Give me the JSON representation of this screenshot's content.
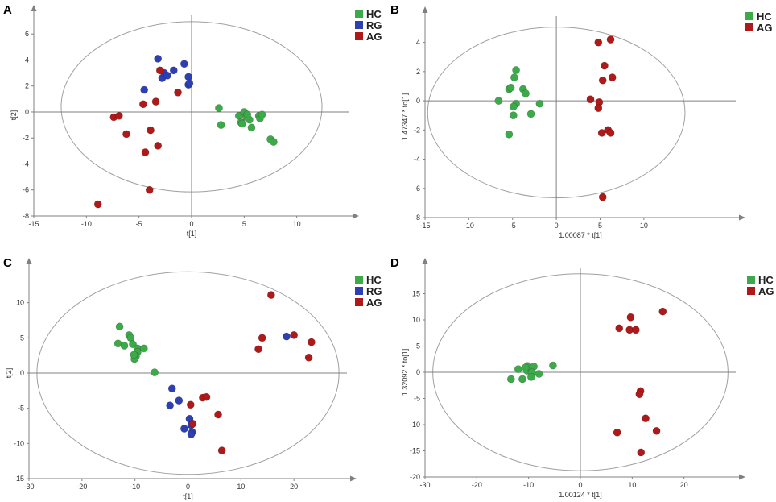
{
  "colors": {
    "HC": "#3daa4a",
    "RG": "#2e3fb3",
    "AG": "#b01919"
  },
  "chart_data": [
    {
      "type": "scatter",
      "panel": "A",
      "xlabel": "t[1]",
      "ylabel": "t[2]",
      "xlim": [
        -15,
        15
      ],
      "ylim": [
        -8,
        7.5
      ],
      "xticks": [
        -15,
        -10,
        -5,
        0,
        5,
        10
      ],
      "yticks": [
        -8,
        -6,
        -4,
        -2,
        0,
        2,
        4,
        6
      ],
      "ellipse": {
        "rx": 12.4,
        "ry": 6.55,
        "cy": 0.4
      },
      "legend": [
        "HC",
        "RG",
        "AG"
      ],
      "series": [
        {
          "name": "HC",
          "x": [
            2.6,
            2.8,
            4.5,
            4.7,
            5.0,
            5.2,
            5.5,
            5.7,
            6.4,
            6.5,
            6.7,
            7.5,
            7.8,
            4.8,
            5.3
          ],
          "y": [
            0.3,
            -1.0,
            -0.3,
            -0.8,
            0.0,
            -0.4,
            -0.6,
            -1.2,
            -0.3,
            -0.5,
            -0.2,
            -2.1,
            -2.3,
            -0.9,
            -0.2
          ]
        },
        {
          "name": "RG",
          "x": [
            -4.5,
            -3.2,
            -2.8,
            -2.6,
            -2.3,
            -1.7,
            -0.7,
            -0.3,
            -0.3,
            -0.2
          ],
          "y": [
            1.7,
            4.1,
            2.6,
            3.0,
            2.8,
            3.2,
            3.7,
            2.7,
            2.1,
            2.2
          ]
        },
        {
          "name": "AG",
          "x": [
            -3.0,
            -1.3,
            -3.4,
            -4.6,
            -7.4,
            -6.9,
            -6.2,
            -3.9,
            -3.2,
            -4.4,
            -4.0,
            -8.9
          ],
          "y": [
            3.2,
            1.5,
            0.8,
            0.6,
            -0.4,
            -0.3,
            -1.7,
            -1.4,
            -2.6,
            -3.1,
            -6.0,
            -7.1
          ]
        }
      ]
    },
    {
      "type": "scatter",
      "panel": "B",
      "xlabel": "1.00087 * t[1]",
      "ylabel": "1.47347 * to[1]",
      "xlim": [
        -15,
        20.5
      ],
      "ylim": [
        -8,
        5.8
      ],
      "xticks": [
        -15,
        -10,
        -5,
        0,
        5,
        10
      ],
      "yticks": [
        -8,
        -6,
        -4,
        -2,
        0,
        2,
        4
      ],
      "ellipse": {
        "rx": 14.7,
        "ry": 5.85,
        "cy": -0.8
      },
      "legend": [
        "HC",
        "AG"
      ],
      "series": [
        {
          "name": "HC",
          "x": [
            -4.6,
            -4.8,
            -3.8,
            -3.5,
            -5.4,
            -6.6,
            -4.6,
            -4.9,
            -4.9,
            -1.9,
            -2.9,
            -5.4,
            -5.2
          ],
          "y": [
            2.1,
            1.6,
            0.8,
            0.5,
            0.8,
            0.0,
            -0.2,
            -0.4,
            -1.0,
            -0.2,
            -0.9,
            -2.3,
            0.9
          ]
        },
        {
          "name": "AG",
          "x": [
            4.8,
            6.2,
            5.5,
            6.4,
            5.3,
            3.9,
            4.9,
            4.8,
            5.9,
            6.2,
            5.2,
            5.3
          ],
          "y": [
            4.0,
            4.2,
            2.4,
            1.6,
            1.4,
            0.1,
            -0.1,
            -0.5,
            -2.0,
            -2.2,
            -2.2,
            -6.6
          ]
        }
      ]
    },
    {
      "type": "scatter",
      "panel": "C",
      "xlabel": "t[1]",
      "ylabel": "t[2]",
      "xlim": [
        -30,
        30
      ],
      "ylim": [
        -15,
        15
      ],
      "xticks": [
        -30,
        -20,
        -10,
        0,
        10,
        20
      ],
      "yticks": [
        -15,
        -10,
        -5,
        0,
        5,
        10
      ],
      "ellipse": {
        "rx": 28.5,
        "ry": 14.4,
        "cy": 0
      },
      "legend": [
        "HC",
        "RG",
        "AG"
      ],
      "series": [
        {
          "name": "HC",
          "x": [
            -12.9,
            -11.1,
            -10.8,
            -10.4,
            -13.2,
            -12.0,
            -9.5,
            -8.3,
            -9.5,
            -9.8,
            -10.1,
            -10.2,
            -6.3
          ],
          "y": [
            6.6,
            5.4,
            5.0,
            4.1,
            4.2,
            3.9,
            3.5,
            3.5,
            3.0,
            2.4,
            2.0,
            2.6,
            0.1
          ]
        },
        {
          "name": "RG",
          "x": [
            18.6,
            -3.0,
            -1.7,
            -3.4,
            0.3,
            0.6,
            -0.7,
            0.8,
            0.6
          ],
          "y": [
            5.2,
            -2.2,
            -3.9,
            -4.6,
            -6.5,
            -7.4,
            -7.9,
            -8.4,
            -8.7
          ]
        },
        {
          "name": "AG",
          "x": [
            15.7,
            20.0,
            23.3,
            14.0,
            13.3,
            22.8,
            0.5,
            2.8,
            3.5,
            5.7,
            0.9,
            6.4
          ],
          "y": [
            11.1,
            5.4,
            4.4,
            5.0,
            3.4,
            2.2,
            -4.5,
            -3.5,
            -3.4,
            -5.9,
            -7.2,
            -11.0
          ]
        }
      ]
    },
    {
      "type": "scatter",
      "panel": "D",
      "xlabel": "1.00124 * t[1]",
      "ylabel": "1.32092 * to[1]",
      "xlim": [
        -30,
        30
      ],
      "ylim": [
        -20,
        20
      ],
      "xticks": [
        -30,
        -20,
        -10,
        0,
        10,
        20
      ],
      "yticks": [
        -20,
        -15,
        -10,
        -5,
        0,
        5,
        10,
        15
      ],
      "ellipse": {
        "rx": 28.5,
        "ry": 18.8,
        "cy": 0
      },
      "legend": [
        "HC",
        "AG"
      ],
      "series": [
        {
          "name": "HC",
          "x": [
            -10.2,
            -9.0,
            -12.0,
            -10.3,
            -9.4,
            -8.0,
            -9.5,
            -5.3,
            -13.4,
            -11.2,
            -10.6
          ],
          "y": [
            1.2,
            1.1,
            0.6,
            0.3,
            0.0,
            -0.3,
            -0.9,
            1.3,
            -1.3,
            -1.3,
            0.9
          ]
        },
        {
          "name": "AG",
          "x": [
            15.9,
            9.7,
            7.5,
            9.5,
            10.7,
            11.6,
            11.4,
            12.6,
            14.7,
            7.1,
            11.7
          ],
          "y": [
            11.6,
            10.5,
            8.4,
            8.1,
            8.1,
            -3.6,
            -4.2,
            -8.8,
            -11.2,
            -11.5,
            -15.3
          ]
        }
      ]
    }
  ]
}
